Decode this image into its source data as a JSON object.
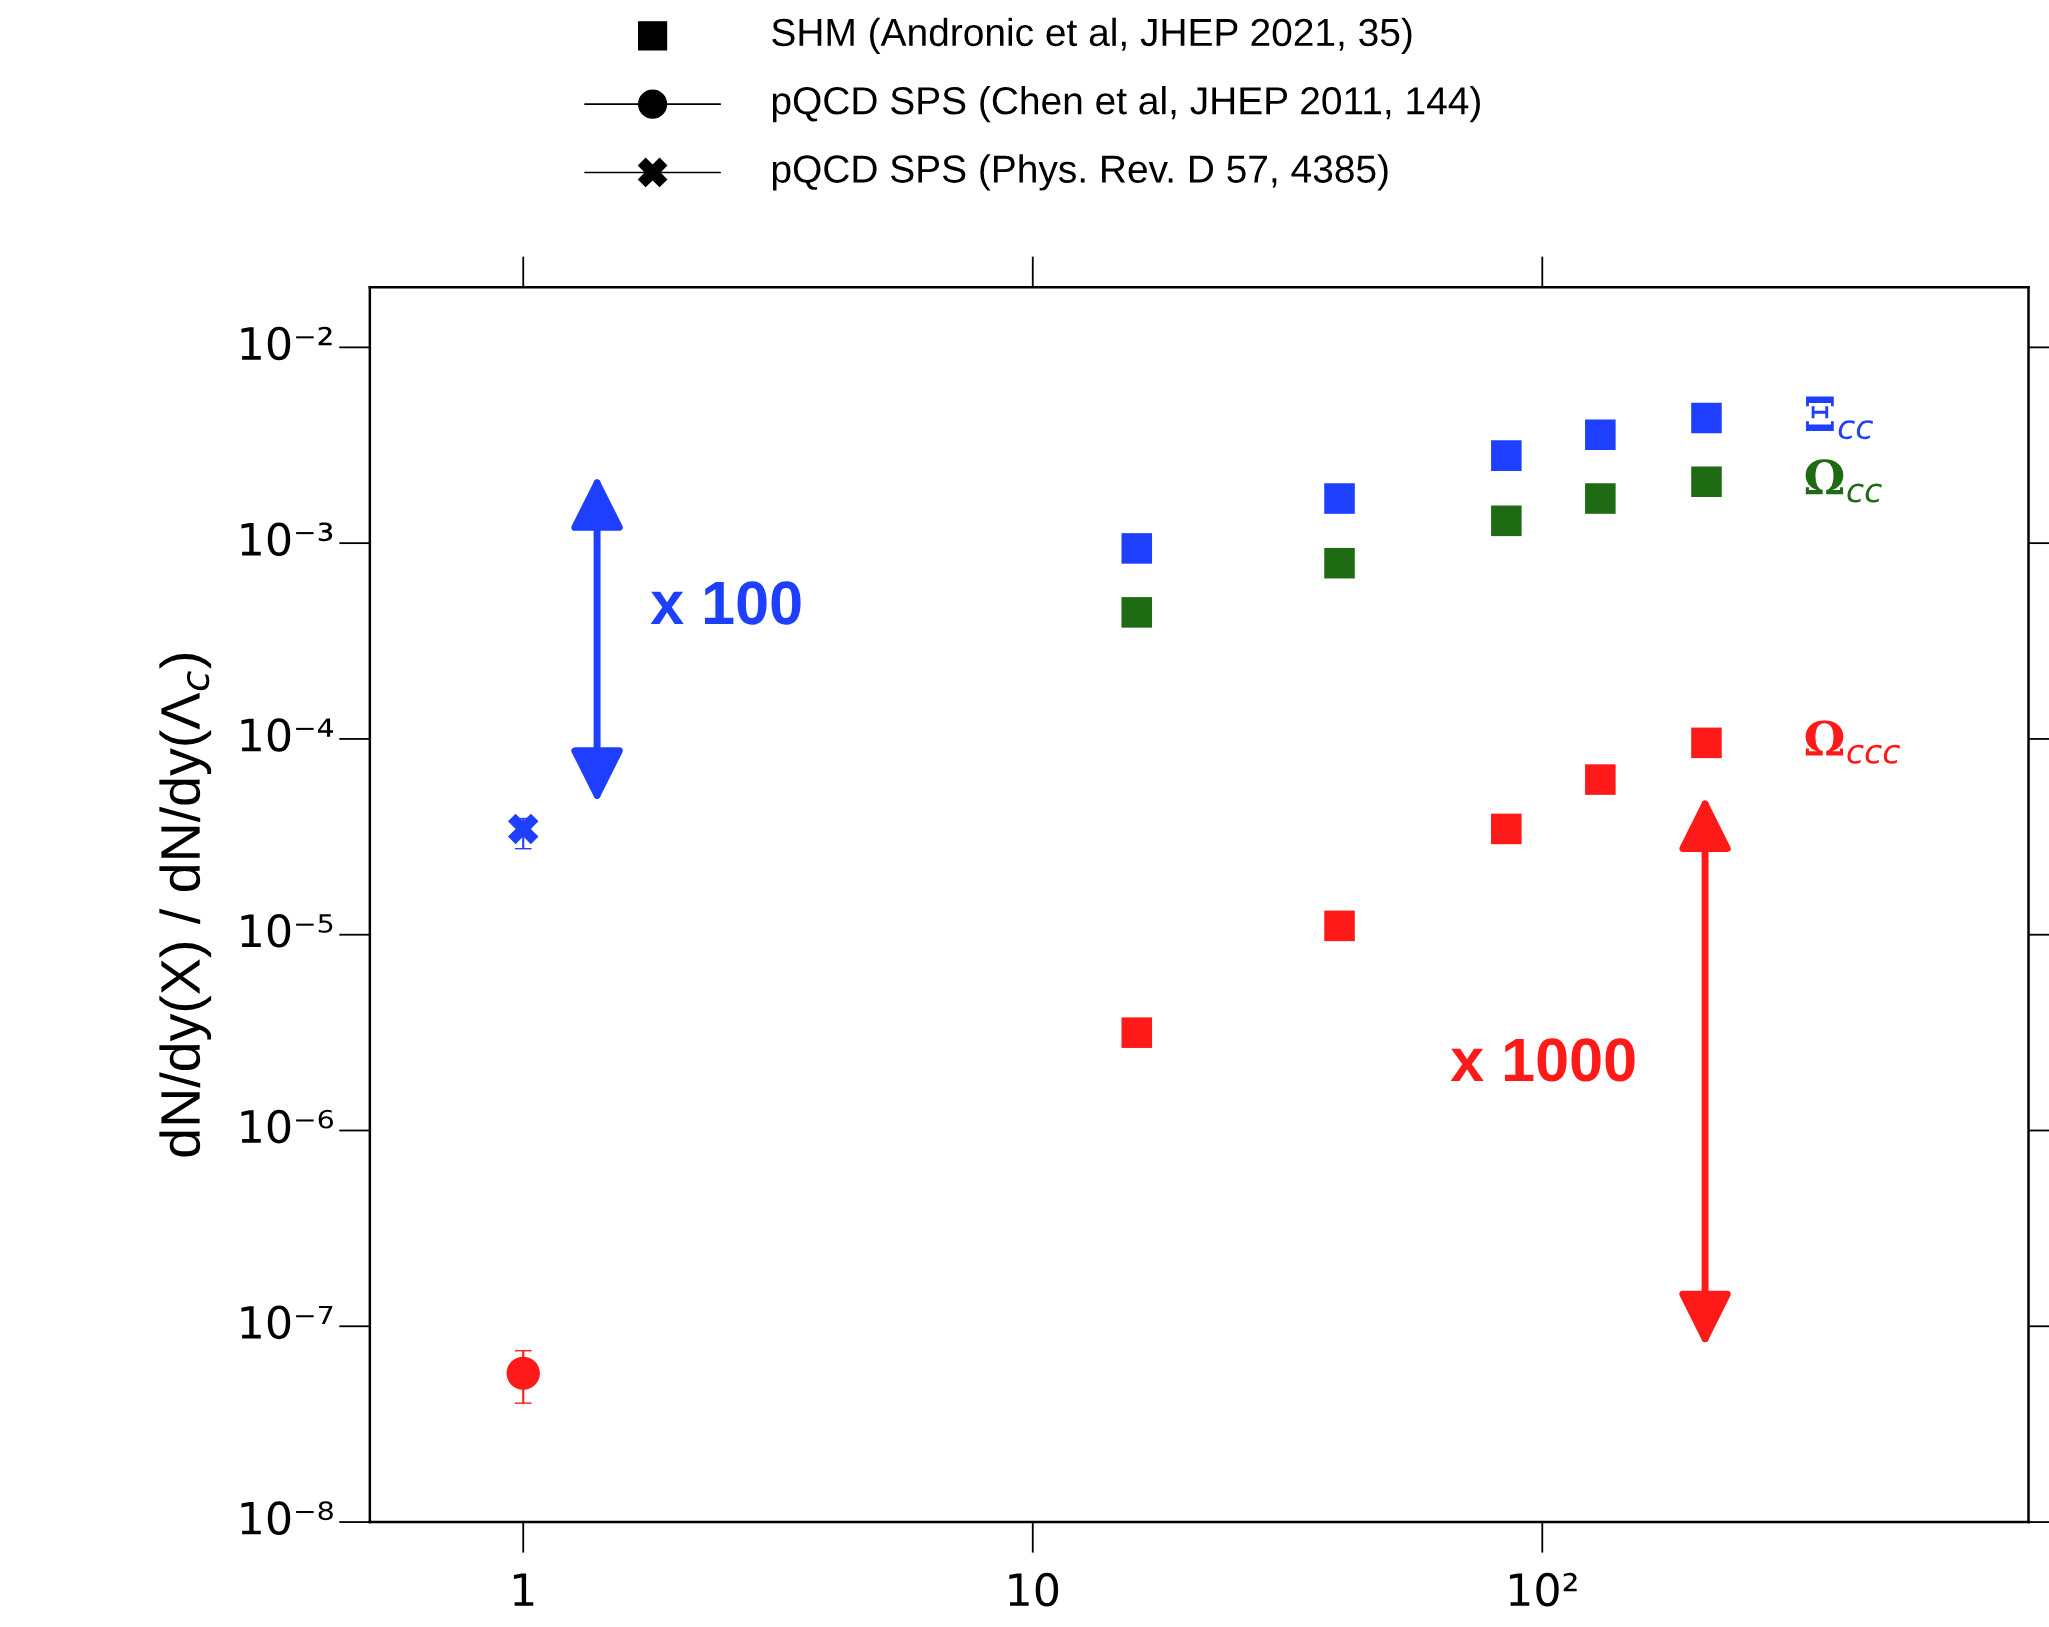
{
  "chart_data": {
    "type": "scatter",
    "ylabel": "dN/dy(X) / dN/dy(Λ$_{c}$)",
    "log": "xy",
    "xlim": [
      0.5,
      900
    ],
    "ylim": [
      1e-08,
      0.0203
    ],
    "xticks": [
      1,
      10,
      {
        "value": 100,
        "label": "10²"
      }
    ],
    "yticks": [
      {
        "value": 1e-08,
        "label": "10⁻⁸"
      },
      {
        "value": 1e-07,
        "label": "10⁻⁷"
      },
      {
        "value": 1e-06,
        "label": "10⁻⁶"
      },
      {
        "value": 1e-05,
        "label": "10⁻⁵"
      },
      {
        "value": 0.0001,
        "label": "10⁻⁴"
      },
      {
        "value": 0.001,
        "label": "10⁻³"
      },
      {
        "value": 0.01,
        "label": "10⁻²"
      }
    ],
    "grid": false,
    "annotations": [
      "SHM (Andronic et al, JHEP 2021, 35)",
      "pQCD SPS (Chen et al, JHEP 2011, 144)",
      "pQCD SPS (Phys. Rev. D 57, 4385)",
      "x 100",
      "x 1000"
    ],
    "series": [
      {
        "name": "Ξ$_{cc}$",
        "color": "#1f3fff",
        "marker": "square",
        "x": [
          16,
          40,
          85,
          130,
          210
        ],
        "values": [
          0.00094,
          0.00169,
          0.0028,
          0.00358,
          0.00436
        ]
      },
      {
        "name": "Ω$_{cc}$",
        "color": "#1e6b14",
        "marker": "square",
        "x": [
          16,
          40,
          85,
          130,
          210
        ],
        "values": [
          0.000443,
          0.00079,
          0.0013,
          0.00169,
          0.00206
        ]
      },
      {
        "name": "Ω$_{ccc}$",
        "color": "#ff1a1a",
        "marker": "square",
        "x": [
          16,
          40,
          85,
          130,
          210
        ],
        "values": [
          3.16e-06,
          1.11e-05,
          3.47e-05,
          6.2e-05,
          9.55e-05
        ]
      },
      {
        "color": "#ff1a1a",
        "marker": "circle",
        "x": [
          1
        ],
        "values": [
          5.75e-08
        ],
        "errors": [
          [
            4.05e-08,
            7.5e-08
          ]
        ]
      },
      {
        "color": "#1f3fff",
        "marker": "cross",
        "x": [
          1
        ],
        "values": [
          3.47e-05
        ],
        "errors": [
          [
            2.75e-05,
            3.92e-05
          ]
        ]
      }
    ]
  }
}
